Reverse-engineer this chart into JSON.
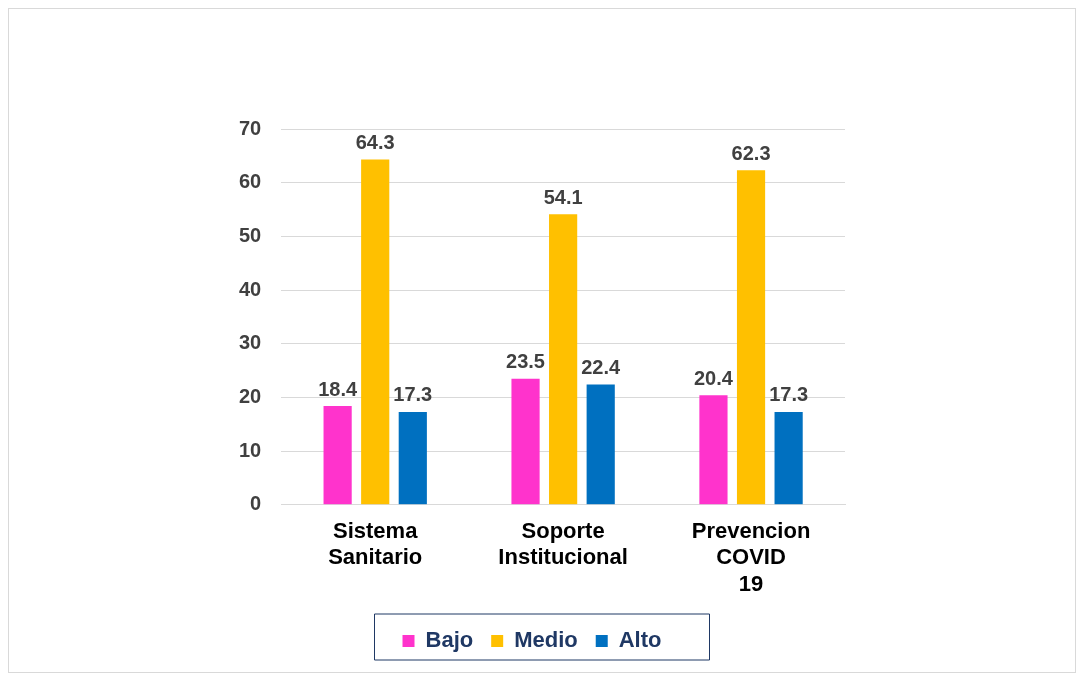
{
  "chart_data": {
    "type": "bar",
    "categories": [
      "Sistema Sanitario",
      "Soporte Institucional",
      "Prevencion COVID 19"
    ],
    "series": [
      {
        "name": "Bajo",
        "color": "#ff33cc",
        "values": [
          18.4,
          23.5,
          20.4
        ]
      },
      {
        "name": "Medio",
        "color": "#ffc000",
        "values": [
          64.3,
          54.1,
          62.3
        ]
      },
      {
        "name": "Alto",
        "color": "#0070c0",
        "values": [
          17.3,
          22.4,
          17.3
        ]
      }
    ],
    "ylim": [
      0,
      70
    ],
    "yticks": [
      0,
      10,
      20,
      30,
      40,
      50,
      60,
      70
    ],
    "grid": "y",
    "legend": "bottom",
    "data_labels": true
  }
}
